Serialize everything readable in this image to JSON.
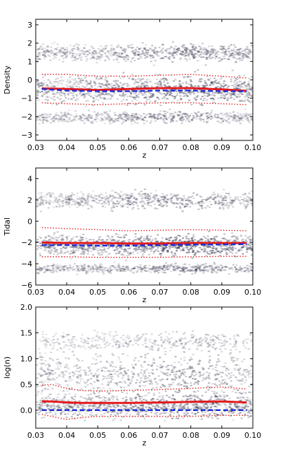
{
  "chart_data": [
    {
      "type": "heatmap",
      "xlabel": "z",
      "ylabel": "Density",
      "xlim": [
        0.03,
        0.1
      ],
      "ylim": [
        -3.3,
        3.3
      ],
      "xticks": [
        "0.03",
        "0.04",
        "0.05",
        "0.06",
        "0.07",
        "0.08",
        "0.09",
        "0.10"
      ],
      "yticks": [
        "-3",
        "-2",
        "-1",
        "0",
        "1",
        "2",
        "3"
      ],
      "bands": [
        {
          "center": 1.5,
          "width": 0.9,
          "weight": 0.55
        },
        {
          "center": -0.5,
          "width": 1.4,
          "weight": 0.75
        },
        {
          "center": -2.0,
          "width": 0.6,
          "weight": 0.45
        }
      ],
      "series": [
        {
          "style": "solid-red",
          "x": [
            0.032,
            0.04,
            0.05,
            0.06,
            0.07,
            0.08,
            0.09,
            0.098
          ],
          "y": [
            -0.47,
            -0.5,
            -0.55,
            -0.5,
            -0.45,
            -0.45,
            -0.52,
            -0.6
          ]
        },
        {
          "style": "dashed-blue",
          "x": [
            0.032,
            0.04,
            0.05,
            0.06,
            0.07,
            0.08,
            0.09,
            0.098
          ],
          "y": [
            -0.5,
            -0.58,
            -0.62,
            -0.62,
            -0.58,
            -0.58,
            -0.62,
            -0.62
          ]
        },
        {
          "style": "dotted-red",
          "x": [
            0.032,
            0.04,
            0.05,
            0.06,
            0.07,
            0.08,
            0.09,
            0.098
          ],
          "y": [
            0.3,
            0.3,
            0.2,
            0.2,
            0.25,
            0.3,
            0.2,
            0.1
          ]
        },
        {
          "style": "dotted-red",
          "x": [
            0.032,
            0.04,
            0.05,
            0.06,
            0.07,
            0.08,
            0.09,
            0.098
          ],
          "y": [
            -1.25,
            -1.3,
            -1.35,
            -1.3,
            -1.25,
            -1.25,
            -1.3,
            -1.35
          ]
        }
      ]
    },
    {
      "type": "heatmap",
      "xlabel": "z",
      "ylabel": "Tidal",
      "xlim": [
        0.03,
        0.1
      ],
      "ylim": [
        -6,
        5
      ],
      "xticks": [
        "0.03",
        "0.04",
        "0.05",
        "0.06",
        "0.07",
        "0.08",
        "0.09",
        "0.10"
      ],
      "yticks": [
        "-6",
        "-4",
        "-2",
        "0",
        "2",
        "4"
      ],
      "bands": [
        {
          "center": 2.0,
          "width": 1.5,
          "weight": 0.5
        },
        {
          "center": -2.2,
          "width": 1.8,
          "weight": 0.8
        },
        {
          "center": -4.4,
          "width": 0.8,
          "weight": 0.45
        }
      ],
      "series": [
        {
          "style": "solid-red",
          "x": [
            0.032,
            0.04,
            0.05,
            0.06,
            0.07,
            0.08,
            0.09,
            0.098
          ],
          "y": [
            -2.0,
            -2.05,
            -2.05,
            -2.1,
            -2.1,
            -2.05,
            -2.05,
            -2.05
          ]
        },
        {
          "style": "dashed-blue",
          "x": [
            0.032,
            0.04,
            0.05,
            0.06,
            0.07,
            0.08,
            0.09,
            0.098
          ],
          "y": [
            -2.25,
            -2.25,
            -2.3,
            -2.3,
            -2.25,
            -2.2,
            -2.2,
            -2.15
          ]
        },
        {
          "style": "dotted-red",
          "x": [
            0.032,
            0.04,
            0.05,
            0.06,
            0.07,
            0.08,
            0.09,
            0.098
          ],
          "y": [
            -0.6,
            -0.7,
            -0.8,
            -0.9,
            -0.85,
            -0.8,
            -0.85,
            -0.9
          ]
        },
        {
          "style": "dotted-red",
          "x": [
            0.032,
            0.04,
            0.05,
            0.06,
            0.07,
            0.08,
            0.09,
            0.098
          ],
          "y": [
            -3.35,
            -3.35,
            -3.4,
            -3.4,
            -3.4,
            -3.35,
            -3.3,
            -3.3
          ]
        }
      ]
    },
    {
      "type": "heatmap",
      "xlabel": "z",
      "ylabel": "log(n)",
      "xlim": [
        0.03,
        0.1
      ],
      "ylim": [
        -0.35,
        2.0
      ],
      "xticks": [
        "0.03",
        "0.04",
        "0.05",
        "0.06",
        "0.07",
        "0.08",
        "0.09",
        "0.10"
      ],
      "yticks": [
        "0.0",
        "0.5",
        "1.0",
        "1.5",
        "2.0"
      ],
      "bands": [
        {
          "center": 0.1,
          "width": 0.45,
          "weight": 0.7
        },
        {
          "center": 0.7,
          "width": 0.8,
          "weight": 0.55
        },
        {
          "center": 1.35,
          "width": 0.35,
          "weight": 0.3
        }
      ],
      "series": [
        {
          "style": "solid-red",
          "x": [
            0.032,
            0.035,
            0.04,
            0.045,
            0.05,
            0.06,
            0.07,
            0.08,
            0.09,
            0.098
          ],
          "y": [
            0.17,
            0.17,
            0.15,
            0.14,
            0.14,
            0.14,
            0.15,
            0.16,
            0.17,
            0.15
          ]
        },
        {
          "style": "dashed-blue",
          "x": [
            0.032,
            0.04,
            0.05,
            0.06,
            0.07,
            0.08,
            0.09,
            0.098
          ],
          "y": [
            0.0,
            0.0,
            0.0,
            0.0,
            0.0,
            0.0,
            0.0,
            0.0
          ]
        },
        {
          "style": "dotted-red",
          "x": [
            0.032,
            0.035,
            0.04,
            0.045,
            0.05,
            0.06,
            0.07,
            0.08,
            0.09,
            0.098
          ],
          "y": [
            0.48,
            0.5,
            0.42,
            0.38,
            0.37,
            0.38,
            0.4,
            0.42,
            0.45,
            0.41
          ]
        },
        {
          "style": "dotted-red",
          "x": [
            0.032,
            0.035,
            0.04,
            0.045,
            0.05,
            0.06,
            0.07,
            0.08,
            0.09,
            0.098
          ],
          "y": [
            -0.08,
            -0.12,
            -0.18,
            -0.14,
            -0.12,
            -0.12,
            -0.12,
            -0.12,
            -0.1,
            -0.1
          ]
        }
      ]
    }
  ],
  "colors": {
    "median": "#e31a1c",
    "mean": "#1f2fd6",
    "percentile": "#e31a1c",
    "density_base": "#3a3a55"
  }
}
